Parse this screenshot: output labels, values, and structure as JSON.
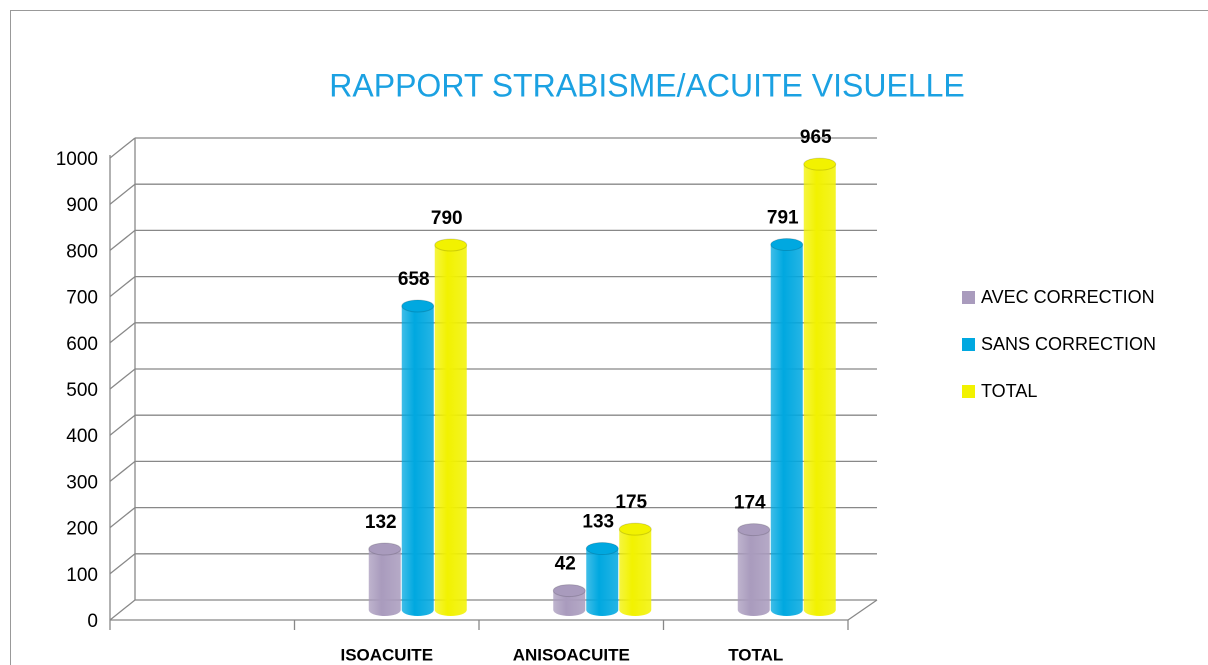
{
  "chart_data": {
    "type": "bar3d",
    "title": "RAPPORT STRABISME/ACUITE VISUELLE",
    "categories": [
      null,
      "ISOACUITE",
      "ANISOACUITE",
      "TOTAL"
    ],
    "series": [
      {
        "name": "AVEC CORRECTION",
        "color": "#a99bbd",
        "values": [
          null,
          132,
          42,
          174
        ]
      },
      {
        "name": "SANS CORRECTION",
        "color": "#00a8e0",
        "values": [
          null,
          658,
          133,
          791
        ]
      },
      {
        "name": "TOTAL",
        "color": "#f2f200",
        "values": [
          null,
          790,
          175,
          965
        ]
      }
    ],
    "ylim": [
      0,
      1000
    ],
    "yticks": [
      0,
      100,
      200,
      300,
      400,
      500,
      600,
      700,
      800,
      900,
      1000
    ],
    "grid": true,
    "legend": "right"
  }
}
